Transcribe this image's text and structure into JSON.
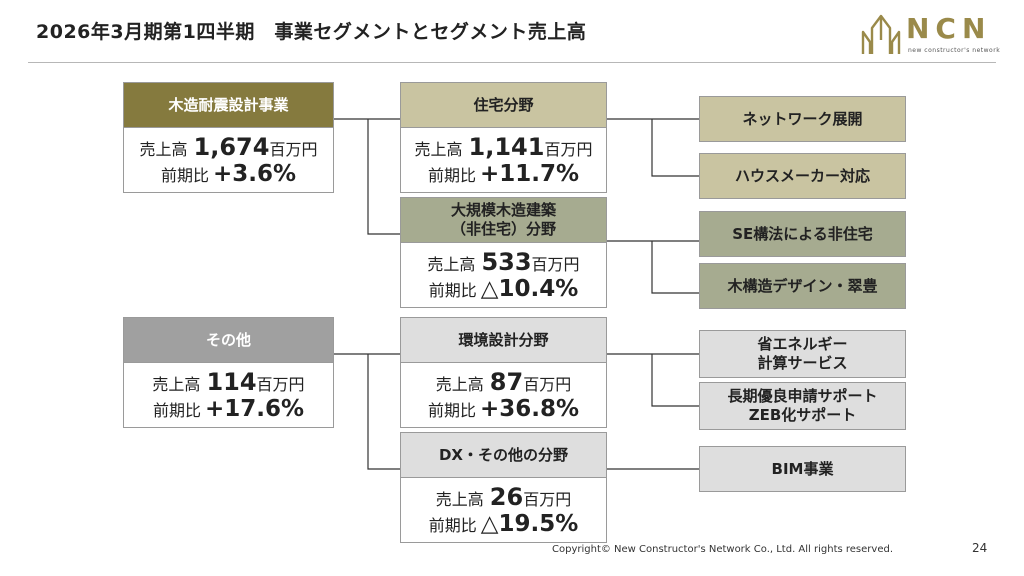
{
  "header": {
    "title": "2026年3月期第1四半期　事業セグメントとセグメント売上高"
  },
  "logo": {
    "text": "NCN",
    "subtext": "new constructor's network"
  },
  "segments": [
    {
      "name": "木造耐震設計事業",
      "sales_label": "売上高",
      "sales_value": "1,674",
      "unit": "百万円",
      "yoy_label": "前期比",
      "yoy_value": "+3.6%"
    },
    {
      "name": "その他",
      "sales_label": "売上高",
      "sales_value": "114",
      "unit": "百万円",
      "yoy_label": "前期比",
      "yoy_value": "+17.6%"
    }
  ],
  "fields": [
    {
      "name": "住宅分野",
      "sales_label": "売上高",
      "sales_value": "1,141",
      "unit": "百万円",
      "yoy_label": "前期比",
      "yoy_value": "+11.7%"
    },
    {
      "name_line1": "大規模木造建築",
      "name_line2": "（非住宅）分野",
      "sales_label": "売上高",
      "sales_value": "533",
      "unit": "百万円",
      "yoy_label": "前期比",
      "yoy_value": "△10.4%"
    },
    {
      "name": "環境設計分野",
      "sales_label": "売上高",
      "sales_value": "87",
      "unit": "百万円",
      "yoy_label": "前期比",
      "yoy_value": "+36.8%"
    },
    {
      "name": "DX・その他の分野",
      "sales_label": "売上高",
      "sales_value": "26",
      "unit": "百万円",
      "yoy_label": "前期比",
      "yoy_value": "△19.5%"
    }
  ],
  "services": [
    {
      "line1": "ネットワーク展開"
    },
    {
      "line1": "ハウスメーカー対応"
    },
    {
      "line1": "SE構法による非住宅"
    },
    {
      "line1": "木構造デザイン・翠豊"
    },
    {
      "line1": "省エネルギー",
      "line2": "計算サービス"
    },
    {
      "line1": "長期優良申請サポート",
      "line2": "ZEB化サポート"
    },
    {
      "line1": "BIM事業"
    }
  ],
  "colors": {
    "olive": "#857a3e",
    "khaki": "#c9c4a1",
    "sage": "#a6ab90",
    "grey": "#a0a0a0",
    "light_grey": "#dedede",
    "logo_gold": "#9a8a4a"
  },
  "footer": {
    "copyright": "Copyright© New Constructor's Network Co., Ltd. All rights reserved.",
    "page_number": "24"
  }
}
